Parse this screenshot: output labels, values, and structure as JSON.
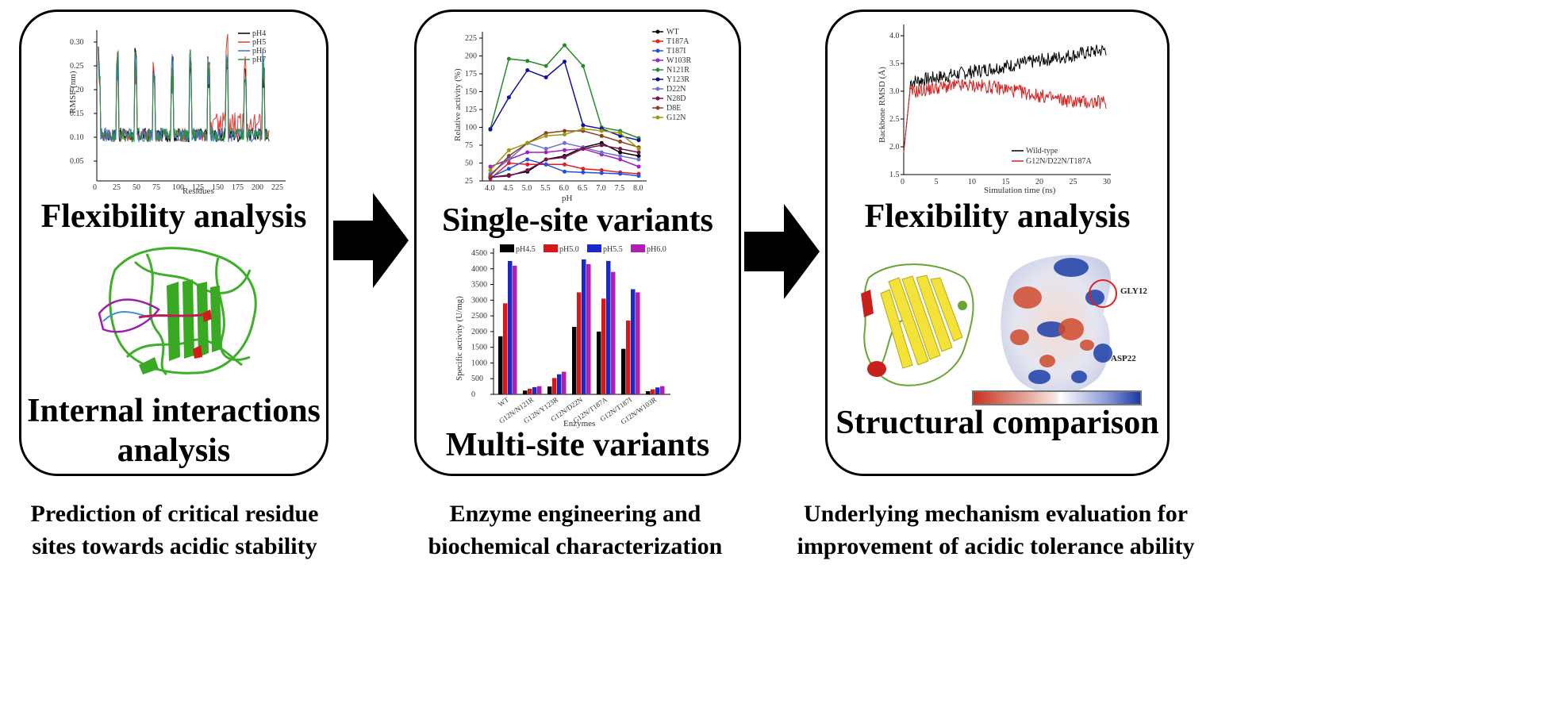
{
  "panels": [
    {
      "heading_top": "Flexibility analysis",
      "heading_bottom_line1": "Internal interactions",
      "heading_bottom_line2": "analysis",
      "chart_legend": [
        "pH4",
        "pH5",
        "pH6",
        "pH7"
      ],
      "chart_ylabel": "RMSF (nm)",
      "chart_xlabel": "Residues",
      "chart_yticks": [
        "0.05",
        "0.10",
        "0.15",
        "0.20",
        "0.25",
        "0.30"
      ],
      "chart_xticks": [
        "0",
        "25",
        "50",
        "75",
        "100",
        "125",
        "150",
        "175",
        "200",
        "225"
      ]
    },
    {
      "heading_top": "Single-site variants",
      "heading_bottom": "Multi-site variants"
    },
    {
      "heading_top": "Flexibility analysis",
      "heading_bottom": "Structural comparison",
      "chart_legend": [
        "Wild-type",
        "G12N/D22N/T187A"
      ],
      "chart_ylabel": "Backbone RMSD (Å)",
      "chart_xlabel": "Simulation time (ns)",
      "chart_yticks": [
        "1.5",
        "2.0",
        "2.5",
        "3.0",
        "3.5",
        "4.0"
      ],
      "chart_xticks": [
        "0",
        "5",
        "10",
        "15",
        "20",
        "25",
        "30"
      ],
      "labels": [
        "GLY12",
        "ASP22"
      ]
    }
  ],
  "captions": [
    {
      "line1": "Prediction of critical residue",
      "line2": "sites towards acidic stability"
    },
    {
      "line1": "Enzyme engineering and",
      "line2": "biochemical characterization"
    },
    {
      "line1": "Underlying mechanism evaluation for",
      "line2": "improvement of acidic tolerance ability"
    }
  ],
  "colors": {
    "green_structure": "#3fae2a",
    "yellow_structure": "#f2e23a",
    "black": "#000000",
    "red": "#d62020",
    "blue": "#1f3fc8",
    "magenta": "#b020b0"
  },
  "chart_data": [
    {
      "type": "line",
      "title": "",
      "ylabel": "Relative activity (%)",
      "xlabel": "pH",
      "x": [
        4.0,
        4.5,
        5.0,
        5.5,
        6.0,
        6.5,
        7.0,
        7.5,
        8.0
      ],
      "x_ticklabels": [
        "4.0",
        "4.5",
        "5.0",
        "5.5",
        "6.0",
        "6.5",
        "7.0",
        "7.5",
        "8.0"
      ],
      "ylim": [
        25,
        225
      ],
      "y_ticklabels": [
        "25",
        "50",
        "75",
        "100",
        "125",
        "150",
        "175",
        "200",
        "225"
      ],
      "series": [
        {
          "name": "WT",
          "color": "#000000",
          "values": [
            30,
            33,
            38,
            55,
            60,
            72,
            78,
            65,
            60
          ]
        },
        {
          "name": "T187A",
          "color": "#e02020",
          "values": [
            28,
            50,
            48,
            48,
            48,
            42,
            40,
            37,
            35
          ]
        },
        {
          "name": "T187I",
          "color": "#2050e0",
          "values": [
            30,
            42,
            55,
            48,
            38,
            37,
            36,
            35,
            32
          ]
        },
        {
          "name": "W103R",
          "color": "#a020c0",
          "values": [
            45,
            55,
            65,
            65,
            68,
            70,
            62,
            55,
            45
          ]
        },
        {
          "name": "N121R",
          "color": "#2a8a2a",
          "values": [
            98,
            196,
            193,
            186,
            215,
            186,
            100,
            95,
            85
          ]
        },
        {
          "name": "Y123R",
          "color": "#1010a0",
          "values": [
            97,
            142,
            180,
            170,
            192,
            103,
            98,
            88,
            82
          ]
        },
        {
          "name": "D22N",
          "color": "#7070d0",
          "values": [
            35,
            55,
            78,
            70,
            78,
            72,
            65,
            60,
            55
          ]
        },
        {
          "name": "N28D",
          "color": "#7a1050",
          "values": [
            30,
            32,
            40,
            55,
            58,
            70,
            75,
            70,
            65
          ]
        },
        {
          "name": "D8E",
          "color": "#8a4020",
          "values": [
            32,
            60,
            78,
            92,
            95,
            95,
            88,
            80,
            72
          ]
        },
        {
          "name": "G12N",
          "color": "#9a9a10",
          "values": [
            40,
            68,
            78,
            88,
            90,
            98,
            95,
            92,
            70
          ]
        }
      ]
    },
    {
      "type": "bar",
      "title": "",
      "ylabel": "Specific activity (U/mg)",
      "xlabel": "Enzymes",
      "categories": [
        "WT",
        "G12N/N121R",
        "G12N/Y123R",
        "G12N/D22N",
        "G12N/T187A",
        "G12N/T187I",
        "G12N/W103R"
      ],
      "ylim": [
        0,
        4500
      ],
      "y_ticklabels": [
        "0",
        "500",
        "1000",
        "1500",
        "2000",
        "2500",
        "3000",
        "3500",
        "4000",
        "4500"
      ],
      "legend_position": "top",
      "series": [
        {
          "name": "pH4.5",
          "color": "#000000",
          "values": [
            1850,
            120,
            250,
            2150,
            2000,
            1450,
            100
          ]
        },
        {
          "name": "pH5.0",
          "color": "#d81818",
          "values": [
            2900,
            180,
            520,
            3250,
            3050,
            2350,
            160
          ]
        },
        {
          "name": "pH5.5",
          "color": "#1a2ac8",
          "values": [
            4250,
            230,
            640,
            4300,
            4250,
            3350,
            220
          ]
        },
        {
          "name": "pH6.0",
          "color": "#b020b0",
          "values": [
            4100,
            260,
            720,
            4150,
            3900,
            3250,
            260
          ]
        }
      ]
    }
  ]
}
